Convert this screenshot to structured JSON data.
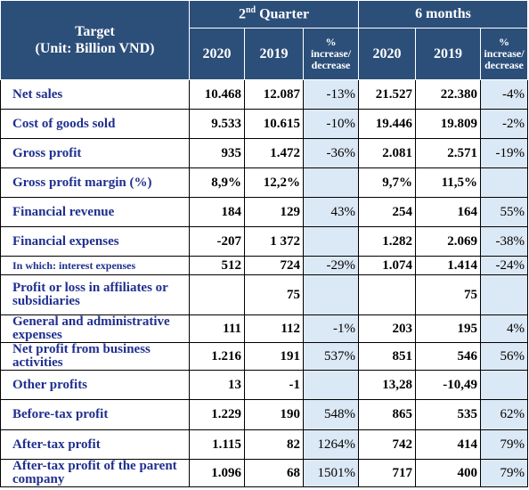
{
  "header": {
    "target_line1": "Target",
    "target_line2": "(Unit: Billion VND)",
    "quarter_num": "2",
    "quarter_sup": "nd",
    "quarter_word": "Quarter",
    "six_months": "6 months",
    "col_2020": "2020",
    "col_2019": "2019",
    "pct_line1": "%",
    "pct_line2": "increase/",
    "pct_line3": "decrease"
  },
  "rows": [
    {
      "label": "Net sales",
      "q2020": "10.468",
      "q2019": "12.087",
      "qpct": "-13%",
      "h2020": "21.527",
      "h2019": "22.380",
      "hpct": "-4%"
    },
    {
      "label": "Cost of goods sold",
      "q2020": "9.533",
      "q2019": "10.615",
      "qpct": "-10%",
      "h2020": "19.446",
      "h2019": "19.809",
      "hpct": "-2%"
    },
    {
      "label": "Gross profit",
      "q2020": "935",
      "q2019": "1.472",
      "qpct": "-36%",
      "h2020": "2.081",
      "h2019": "2.571",
      "hpct": "-19%"
    },
    {
      "label": "Gross profit margin (%)",
      "q2020": "8,9%",
      "q2019": "12,2%",
      "qpct": "",
      "h2020": "9,7%",
      "h2019": "11,5%",
      "hpct": ""
    },
    {
      "label": "Financial revenue",
      "q2020": "184",
      "q2019": "129",
      "qpct": "43%",
      "h2020": "254",
      "h2019": "164",
      "hpct": "55%"
    },
    {
      "label": "Financial expenses",
      "q2020": "-207",
      "q2019": "1 372",
      "qpct": "",
      "h2020": "1.282",
      "h2019": "2.069",
      "hpct": "-38%"
    },
    {
      "label": "In which: interest expenses",
      "q2020": "512",
      "q2019": "724",
      "qpct": "-29%",
      "h2020": "1.074",
      "h2019": "1.414",
      "hpct": "-24%"
    },
    {
      "label": "Profit or loss in affiliates or subsidiaries",
      "q2020": "",
      "q2019": "75",
      "qpct": "",
      "h2020": "",
      "h2019": "75",
      "hpct": ""
    },
    {
      "label": "General and administrative expenses",
      "q2020": "111",
      "q2019": "112",
      "qpct": "-1%",
      "h2020": "203",
      "h2019": "195",
      "hpct": "4%"
    },
    {
      "label": "Net profit from business activities",
      "q2020": "1.216",
      "q2019": "191",
      "qpct": "537%",
      "h2020": "851",
      "h2019": "546",
      "hpct": "56%"
    },
    {
      "label": "Other profits",
      "q2020": "13",
      "q2019": "-1",
      "qpct": "",
      "h2020": "13,28",
      "h2019": "-10,49",
      "hpct": ""
    },
    {
      "label": "Before-tax profit",
      "q2020": "1.229",
      "q2019": "190",
      "qpct": "548%",
      "h2020": "865",
      "h2019": "535",
      "hpct": "62%"
    },
    {
      "label": "After-tax profit",
      "q2020": "1.115",
      "q2019": "82",
      "qpct": "1264%",
      "h2020": "742",
      "h2019": "414",
      "hpct": "79%"
    },
    {
      "label": "After-tax profit of the parent company",
      "q2020": "1.096",
      "q2019": "68",
      "qpct": "1501%",
      "h2020": "717",
      "h2019": "400",
      "hpct": "79%"
    }
  ],
  "colors": {
    "header_bg": "#2c4f7a",
    "label_text": "#1f2f8f",
    "pct_bg": "#dbe8f5"
  }
}
